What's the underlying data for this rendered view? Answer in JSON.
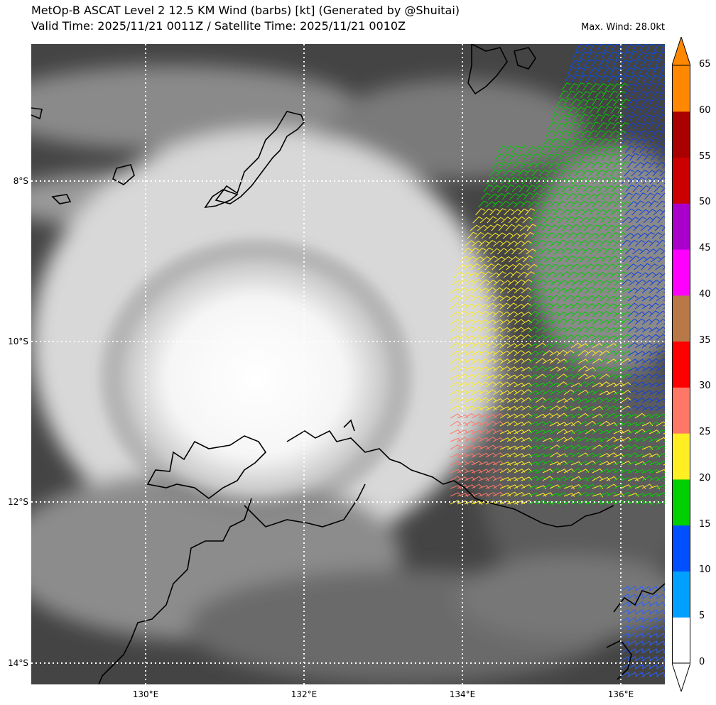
{
  "title_line1": "MetOp-B ASCAT Level 2 12.5 KM Wind (barbs) [kt] (Generated by @Shuitai)",
  "title_line2": "Valid Time: 2025/11/21 0011Z / Satellite Time: 2025/11/21 0010Z",
  "max_wind": "Max. Wind: 28.0kt",
  "lat_labels": [
    "8°S",
    "10°S",
    "12°S",
    "14°S"
  ],
  "lon_labels": [
    "130°E",
    "132°E",
    "134°E",
    "136°E"
  ],
  "colorbar": {
    "ticks": [
      "0",
      "5",
      "10",
      "15",
      "20",
      "25",
      "30",
      "35",
      "40",
      "45",
      "50",
      "55",
      "60",
      "65"
    ],
    "colors": [
      "#ffffff",
      "#00a0ff",
      "#0050ff",
      "#00d000",
      "#ffee22",
      "#ff7766",
      "#ff0000",
      "#b87848",
      "#ff00ff",
      "#aa00cc",
      "#cc0000",
      "#aa0000",
      "#ff8800"
    ]
  }
}
